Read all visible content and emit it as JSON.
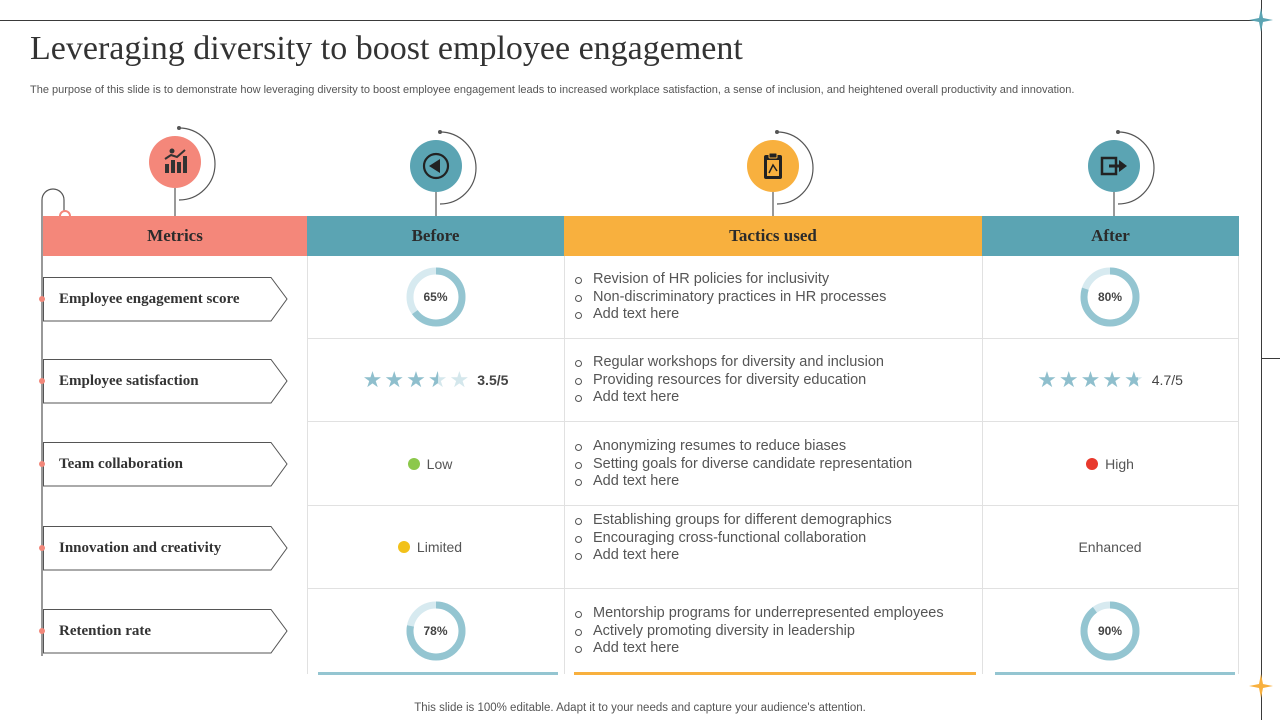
{
  "title": "Leveraging diversity to boost employee engagement",
  "subtitle": "The purpose of this slide is to demonstrate how leveraging diversity to boost employee engagement leads to increased workplace satisfaction, a sense of inclusion, and heightened overall productivity and innovation.",
  "footer": "This slide is 100% editable. Adapt it to your needs and capture your audience's attention.",
  "colors": {
    "metrics": "#f4877a",
    "before": "#5ba4b3",
    "tactics": "#f8b03e",
    "after": "#5ba4b3",
    "donut": "#94c5d1",
    "donut_track": "#d7eaf0",
    "low": "#8cc84b",
    "limited": "#f2c11a",
    "high": "#e8392c"
  },
  "headers": {
    "metrics": "Metrics",
    "before": "Before",
    "tactics": "Tactics used",
    "after": "After"
  },
  "icons": {
    "metrics": "bar-chart-report-icon",
    "before": "rewind-arrow-icon",
    "tactics": "clipboard-strategy-icon",
    "after": "exit-arrow-icon"
  },
  "rows": [
    {
      "metric": "Employee engagement score",
      "before": {
        "type": "donut",
        "value": 65,
        "label": "65%"
      },
      "tactics": [
        "Revision of HR policies for inclusivity",
        "Non-discriminatory practices in HR processes",
        "Add text here"
      ],
      "after": {
        "type": "donut",
        "value": 80,
        "label": "80%"
      }
    },
    {
      "metric": "Employee satisfaction",
      "before": {
        "type": "stars",
        "value": 3.5,
        "label": "3.5/5"
      },
      "tactics": [
        "Regular workshops for diversity and inclusion",
        "Providing resources for diversity education",
        "Add text here"
      ],
      "after": {
        "type": "stars",
        "value": 4.7,
        "label": "4.7/5"
      }
    },
    {
      "metric": "Team collaboration",
      "before": {
        "type": "status",
        "label": "Low",
        "color": "#8cc84b"
      },
      "tactics": [
        "Anonymizing resumes to reduce biases",
        "Setting goals for diverse candidate representation",
        "Add text here"
      ],
      "after": {
        "type": "status",
        "label": "High",
        "color": "#e8392c"
      }
    },
    {
      "metric": "Innovation and creativity",
      "before": {
        "type": "status",
        "label": "Limited",
        "color": "#f2c11a"
      },
      "tactics": [
        "Establishing groups for different demographics",
        "Encouraging cross-functional collaboration",
        "Add text here"
      ],
      "after": {
        "type": "text",
        "label": "Enhanced"
      }
    },
    {
      "metric": "Retention rate",
      "before": {
        "type": "donut",
        "value": 78,
        "label": "78%"
      },
      "tactics": [
        "Mentorship programs for underrepresented employees",
        "Actively promoting diversity in leadership",
        "Add text here"
      ],
      "after": {
        "type": "donut",
        "value": 90,
        "label": "90%"
      }
    }
  ]
}
